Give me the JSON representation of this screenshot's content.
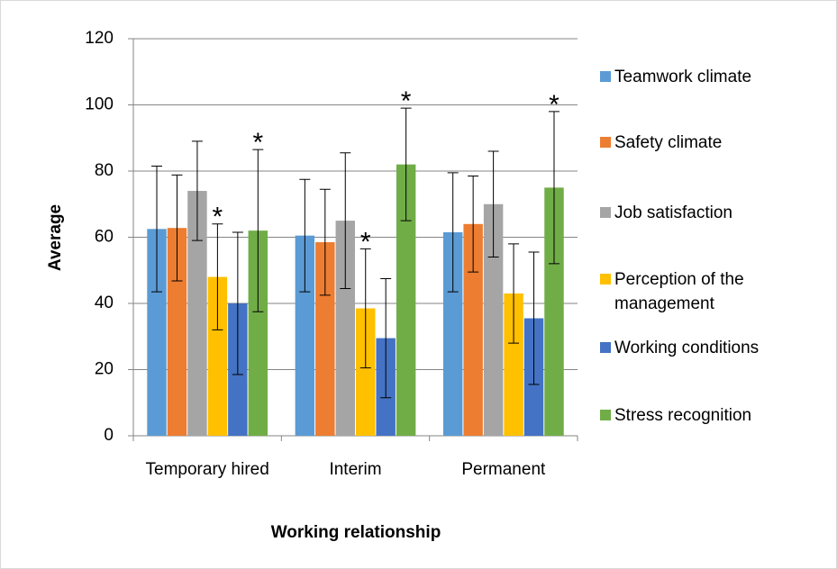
{
  "chart_data": {
    "type": "bar",
    "x_label": "Working relationship",
    "y_label": "Average",
    "categories": [
      "Temporary hired",
      "Interim",
      "Permanent"
    ],
    "series": [
      {
        "name": "Teamwork climate",
        "color": "#5b9bd5",
        "values": [
          62.5,
          60.5,
          61.5
        ],
        "errors": [
          19,
          17,
          18
        ],
        "annotations": [
          null,
          null,
          null
        ]
      },
      {
        "name": "Safety climate",
        "color": "#ed7d31",
        "values": [
          62.8,
          58.5,
          64
        ],
        "errors": [
          16,
          16,
          14.5
        ],
        "annotations": [
          null,
          null,
          null
        ]
      },
      {
        "name": "Job satisfaction",
        "color": "#a5a5a5",
        "values": [
          74,
          65,
          70
        ],
        "errors": [
          15,
          20.5,
          16
        ],
        "annotations": [
          null,
          null,
          null
        ]
      },
      {
        "name": "Perception of the management",
        "color": "#ffc000",
        "values": [
          48,
          38.5,
          43
        ],
        "errors": [
          16,
          18,
          15
        ],
        "annotations": [
          "*",
          "*",
          null
        ]
      },
      {
        "name": "Working conditions",
        "color": "#4472c4",
        "values": [
          40,
          29.5,
          35.5
        ],
        "errors": [
          21.5,
          18,
          20
        ],
        "annotations": [
          null,
          null,
          null
        ]
      },
      {
        "name": "Stress recognition",
        "color": "#70ad47",
        "values": [
          62,
          82,
          75
        ],
        "errors": [
          24.5,
          17,
          23
        ],
        "annotations": [
          "*",
          "*",
          "*"
        ]
      }
    ],
    "ylim": [
      0,
      120
    ],
    "yticks": [
      0,
      20,
      40,
      60,
      80,
      100,
      120
    ],
    "grid": true,
    "legend": "right"
  }
}
